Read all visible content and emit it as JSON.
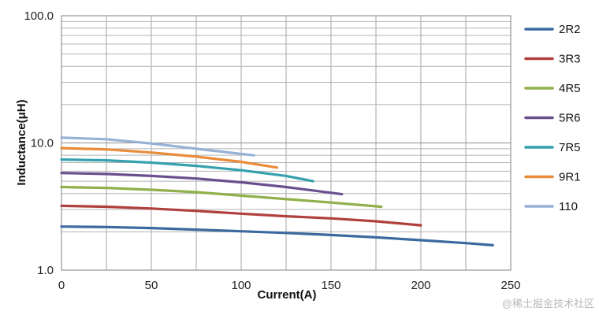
{
  "chart_data": {
    "type": "line",
    "xlabel": "Current(A)",
    "ylabel": "Inductance(μH)",
    "xlim": [
      0,
      250
    ],
    "ylim": [
      1.0,
      100.0
    ],
    "y_scale": "log",
    "x_ticks": [
      "0",
      "50",
      "100",
      "150",
      "200",
      "250"
    ],
    "y_ticks": [
      "1.0",
      "10.0",
      "100.0"
    ],
    "grid": true,
    "legend_position": "right",
    "series": [
      {
        "name": "2R2",
        "color": "#3c6a9f",
        "x": [
          0,
          25,
          50,
          75,
          100,
          125,
          150,
          175,
          200,
          225,
          240
        ],
        "y": [
          2.2,
          2.18,
          2.14,
          2.08,
          2.02,
          1.96,
          1.89,
          1.81,
          1.72,
          1.63,
          1.57
        ]
      },
      {
        "name": "3R3",
        "color": "#b0403e",
        "x": [
          0,
          25,
          50,
          75,
          100,
          125,
          150,
          175,
          200
        ],
        "y": [
          3.2,
          3.15,
          3.05,
          2.92,
          2.78,
          2.65,
          2.55,
          2.42,
          2.25
        ]
      },
      {
        "name": "4R5",
        "color": "#8fb04a",
        "x": [
          0,
          25,
          50,
          75,
          100,
          125,
          150,
          178
        ],
        "y": [
          4.5,
          4.43,
          4.28,
          4.1,
          3.85,
          3.62,
          3.4,
          3.15
        ]
      },
      {
        "name": "5R6",
        "color": "#6a4f8f",
        "x": [
          0,
          25,
          50,
          75,
          100,
          125,
          156
        ],
        "y": [
          5.8,
          5.7,
          5.5,
          5.25,
          4.9,
          4.5,
          3.95
        ]
      },
      {
        "name": "7R5",
        "color": "#35a1ae",
        "x": [
          0,
          25,
          50,
          75,
          100,
          125,
          140
        ],
        "y": [
          7.4,
          7.3,
          7.0,
          6.6,
          6.1,
          5.5,
          5.0
        ]
      },
      {
        "name": "9R1",
        "color": "#e88c3a",
        "x": [
          0,
          25,
          50,
          75,
          100,
          120
        ],
        "y": [
          9.1,
          8.9,
          8.4,
          7.8,
          7.1,
          6.4
        ]
      },
      {
        "name": "110",
        "color": "#95b2d6",
        "x": [
          0,
          25,
          50,
          75,
          107
        ],
        "y": [
          11.0,
          10.7,
          9.9,
          9.0,
          8.0
        ]
      }
    ]
  },
  "watermark": "@稀土掘金技术社区"
}
